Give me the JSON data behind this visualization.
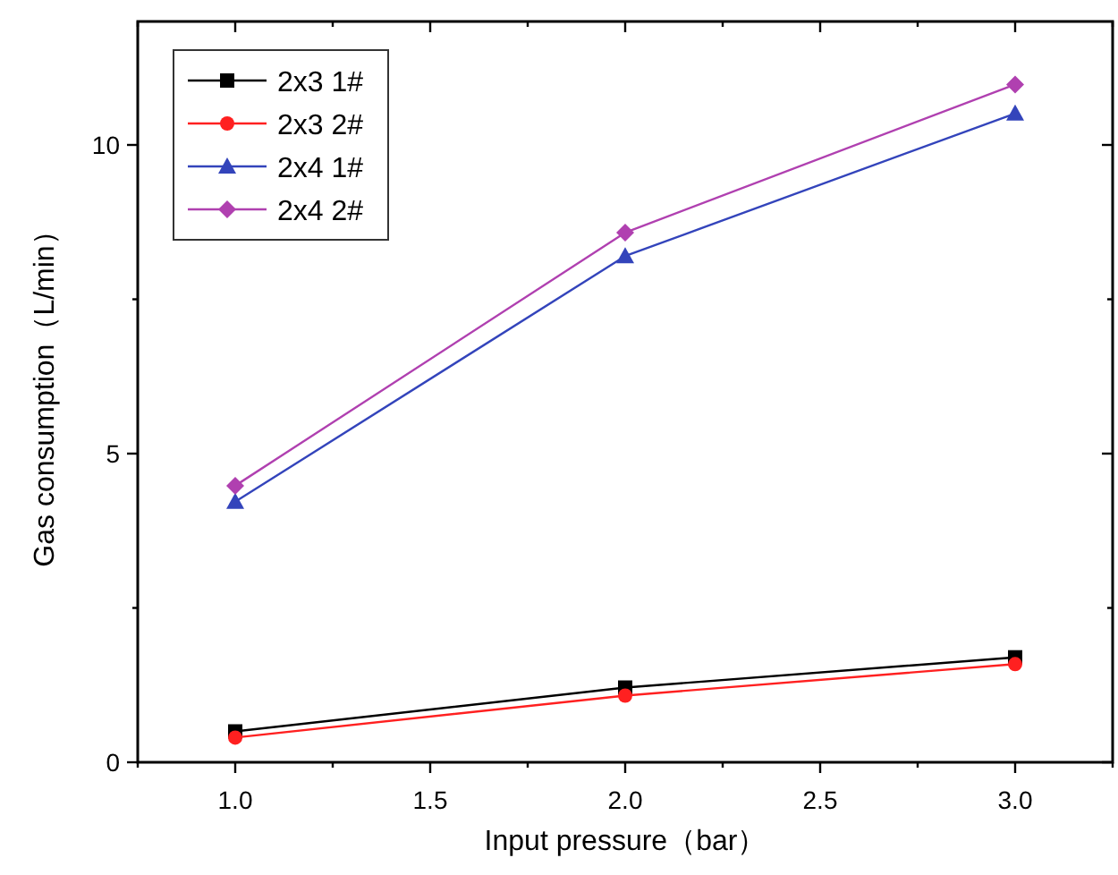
{
  "chart_data": {
    "type": "line",
    "xlabel": "Input pressure（bar）",
    "ylabel": "Gas consumption（L/min）",
    "x": [
      1.0,
      2.0,
      3.0
    ],
    "series": [
      {
        "name": "2x3 1#",
        "color": "#000000",
        "marker": "square",
        "values": [
          0.5,
          1.21,
          1.7
        ]
      },
      {
        "name": "2x3 2#",
        "color": "#ff2020",
        "marker": "circle",
        "values": [
          0.4,
          1.08,
          1.59
        ]
      },
      {
        "name": "2x4 1#",
        "color": "#3344bb",
        "marker": "triangle",
        "values": [
          4.22,
          8.2,
          10.51
        ]
      },
      {
        "name": "2x4 2#",
        "color": "#b040b0",
        "marker": "diamond",
        "values": [
          4.48,
          8.58,
          10.98
        ]
      }
    ],
    "xlim": [
      0.75,
      3.25
    ],
    "xticks": [
      {
        "value": 0.75,
        "label": null
      },
      {
        "value": 1.0,
        "label": "1.0"
      },
      {
        "value": 1.25,
        "label": null
      },
      {
        "value": 1.5,
        "label": "1.5"
      },
      {
        "value": 1.75,
        "label": null
      },
      {
        "value": 2.0,
        "label": "2.0"
      },
      {
        "value": 2.25,
        "label": null
      },
      {
        "value": 2.5,
        "label": "2.5"
      },
      {
        "value": 2.75,
        "label": null
      },
      {
        "value": 3.0,
        "label": "3.0"
      },
      {
        "value": 3.25,
        "label": null
      }
    ],
    "ylim": [
      0,
      12
    ],
    "yticks": [
      0,
      {
        "value": 2.5,
        "label": null
      },
      5,
      {
        "value": 7.5,
        "label": null
      },
      10
    ],
    "grid": false,
    "legend": "top left",
    "line_style": "solid"
  }
}
